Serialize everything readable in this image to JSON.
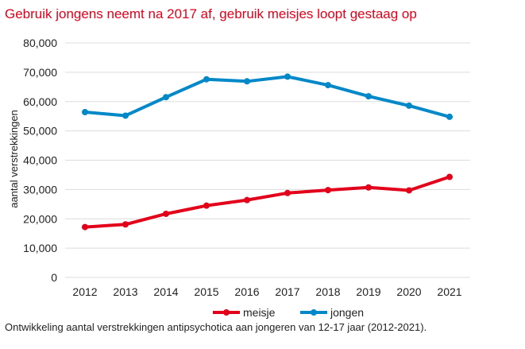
{
  "chart_data": {
    "type": "line",
    "title": "Gebruik jongens neemt na 2017 af, gebruik meisjes loopt gestaag op",
    "caption": "Ontwikkeling aantal verstrekkingen antipsychotica aan jongeren van 12-17 jaar (2012-2021).",
    "xlabel": "",
    "ylabel": "aantal verstrekkingen",
    "ylim": [
      0,
      80000
    ],
    "yticks": [
      0,
      10000,
      20000,
      30000,
      40000,
      50000,
      60000,
      70000,
      80000
    ],
    "ytick_labels": [
      "0",
      "10,000",
      "20,000",
      "30,000",
      "40,000",
      "50,000",
      "60,000",
      "70,000",
      "80,000"
    ],
    "categories": [
      "2012",
      "2013",
      "2014",
      "2015",
      "2016",
      "2017",
      "2018",
      "2019",
      "2020",
      "2021"
    ],
    "grid": true,
    "legend_position": "bottom",
    "series": [
      {
        "name": "meisje",
        "color": "#e2001a",
        "values": [
          17200,
          18100,
          21700,
          24500,
          26400,
          28800,
          29800,
          30700,
          29700,
          34300
        ]
      },
      {
        "name": "jongen",
        "color": "#0088c8",
        "values": [
          56400,
          55200,
          61500,
          67600,
          66900,
          68500,
          65600,
          61800,
          58600,
          54800
        ]
      }
    ]
  }
}
